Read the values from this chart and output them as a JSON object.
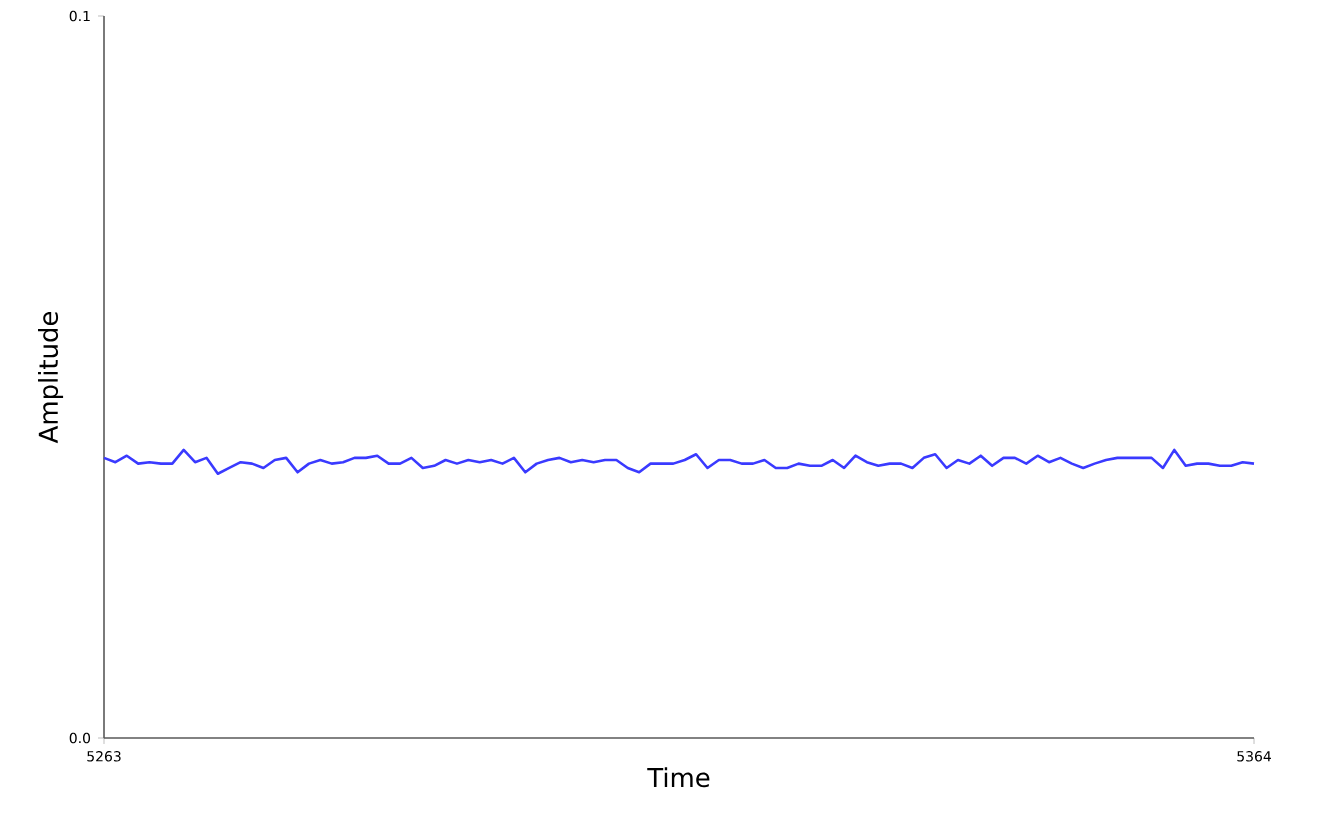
{
  "chart_data": {
    "type": "line",
    "xlabel": "Time",
    "ylabel": "Amplitude",
    "xlim": [
      5263,
      5364
    ],
    "xticks": [
      5263,
      5364
    ],
    "ylim": [
      0,
      0.1
    ],
    "yticks": [
      {
        "value": 0,
        "label": "0.0"
      },
      0.1
    ],
    "series": [
      {
        "color": "#3a3aff",
        "x": [
          5263,
          5264,
          5265,
          5266,
          5267,
          5268,
          5269,
          5270,
          5271,
          5272,
          5273,
          5274,
          5275,
          5276,
          5277,
          5278,
          5279,
          5280,
          5281,
          5282,
          5283,
          5284,
          5285,
          5286,
          5287,
          5288,
          5289,
          5290,
          5291,
          5292,
          5293,
          5294,
          5295,
          5296,
          5297,
          5298,
          5299,
          5300,
          5301,
          5302,
          5303,
          5304,
          5305,
          5306,
          5307,
          5308,
          5309,
          5310,
          5311,
          5312,
          5313,
          5314,
          5315,
          5316,
          5317,
          5318,
          5319,
          5320,
          5321,
          5322,
          5323,
          5324,
          5325,
          5326,
          5327,
          5328,
          5329,
          5330,
          5331,
          5332,
          5333,
          5334,
          5335,
          5336,
          5337,
          5338,
          5339,
          5340,
          5341,
          5342,
          5343,
          5344,
          5345,
          5346,
          5347,
          5348,
          5349,
          5350,
          5351,
          5352,
          5353,
          5354,
          5355,
          5356,
          5357,
          5358,
          5359,
          5360,
          5361,
          5362,
          5363,
          5364
        ],
        "values": [
          0.0388,
          0.0382,
          0.0391,
          0.038,
          0.0382,
          0.038,
          0.038,
          0.0399,
          0.0382,
          0.0388,
          0.0366,
          0.0374,
          0.0382,
          0.038,
          0.0374,
          0.0385,
          0.0388,
          0.0368,
          0.038,
          0.0385,
          0.038,
          0.0382,
          0.0388,
          0.0388,
          0.0391,
          0.038,
          0.038,
          0.0388,
          0.0374,
          0.0377,
          0.0385,
          0.038,
          0.0385,
          0.0382,
          0.0385,
          0.038,
          0.0388,
          0.0368,
          0.038,
          0.0385,
          0.0388,
          0.0382,
          0.0385,
          0.0382,
          0.0385,
          0.0385,
          0.0374,
          0.0368,
          0.038,
          0.038,
          0.038,
          0.0385,
          0.0393,
          0.0374,
          0.0385,
          0.0385,
          0.038,
          0.038,
          0.0385,
          0.0374,
          0.0374,
          0.038,
          0.0377,
          0.0377,
          0.0385,
          0.0374,
          0.0391,
          0.0382,
          0.0377,
          0.038,
          0.038,
          0.0374,
          0.0388,
          0.0393,
          0.0374,
          0.0385,
          0.038,
          0.0391,
          0.0377,
          0.0388,
          0.0388,
          0.038,
          0.0391,
          0.0382,
          0.0388,
          0.038,
          0.0374,
          0.038,
          0.0385,
          0.0388,
          0.0388,
          0.0388,
          0.0388,
          0.0374,
          0.0399,
          0.0377,
          0.038,
          0.038,
          0.0377,
          0.0377,
          0.0382,
          0.038
        ]
      }
    ]
  }
}
